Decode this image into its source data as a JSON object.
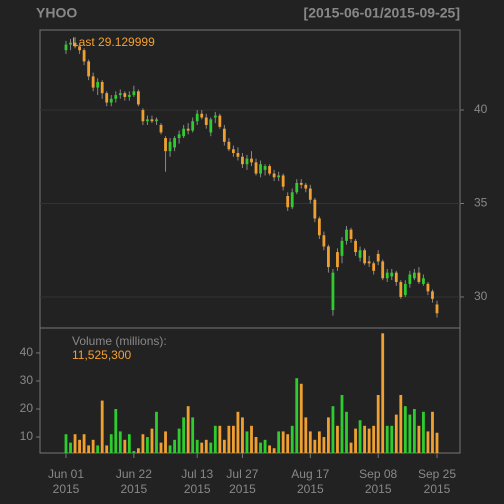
{
  "chart_data": [
    {
      "type": "candlestick",
      "title": "YHOO",
      "subtitle": "[2015-06-01/2015-09-25]",
      "annotation": "Last 29.129999",
      "up_color": "#2ecc2e",
      "down_color": "#f0a030",
      "x": [
        "2015-06-01",
        "2015-06-02",
        "2015-06-03",
        "2015-06-04",
        "2015-06-05",
        "2015-06-08",
        "2015-06-09",
        "2015-06-10",
        "2015-06-11",
        "2015-06-12",
        "2015-06-15",
        "2015-06-16",
        "2015-06-17",
        "2015-06-18",
        "2015-06-19",
        "2015-06-22",
        "2015-06-23",
        "2015-06-24",
        "2015-06-25",
        "2015-06-26",
        "2015-06-29",
        "2015-06-30",
        "2015-07-01",
        "2015-07-02",
        "2015-07-06",
        "2015-07-07",
        "2015-07-08",
        "2015-07-09",
        "2015-07-10",
        "2015-07-13",
        "2015-07-14",
        "2015-07-15",
        "2015-07-16",
        "2015-07-17",
        "2015-07-20",
        "2015-07-21",
        "2015-07-22",
        "2015-07-23",
        "2015-07-24",
        "2015-07-27",
        "2015-07-28",
        "2015-07-29",
        "2015-07-30",
        "2015-07-31",
        "2015-08-03",
        "2015-08-04",
        "2015-08-05",
        "2015-08-06",
        "2015-08-07",
        "2015-08-10",
        "2015-08-11",
        "2015-08-12",
        "2015-08-13",
        "2015-08-14",
        "2015-08-17",
        "2015-08-18",
        "2015-08-19",
        "2015-08-20",
        "2015-08-21",
        "2015-08-24",
        "2015-08-25",
        "2015-08-26",
        "2015-08-27",
        "2015-08-28",
        "2015-08-31",
        "2015-09-01",
        "2015-09-02",
        "2015-09-03",
        "2015-09-04",
        "2015-09-08",
        "2015-09-09",
        "2015-09-10",
        "2015-09-11",
        "2015-09-14",
        "2015-09-15",
        "2015-09-16",
        "2015-09-17",
        "2015-09-18",
        "2015-09-21",
        "2015-09-22",
        "2015-09-23",
        "2015-09-24",
        "2015-09-25"
      ],
      "open": [
        43.2,
        43.5,
        43.6,
        43.4,
        43.2,
        42.6,
        41.8,
        41.2,
        41.5,
        40.9,
        40.4,
        40.6,
        40.8,
        40.9,
        40.7,
        40.8,
        41.0,
        40.0,
        39.4,
        39.5,
        39.4,
        39.2,
        38.5,
        37.8,
        38.0,
        38.5,
        38.6,
        39.0,
        38.9,
        39.4,
        39.8,
        39.6,
        38.8,
        39.6,
        39.7,
        39.0,
        38.3,
        37.9,
        37.7,
        37.5,
        37.1,
        37.4,
        37.2,
        36.6,
        36.8,
        37.0,
        36.6,
        36.4,
        36.5,
        35.4,
        34.8,
        35.6,
        36.1,
        36.0,
        35.8,
        35.2,
        34.2,
        33.3,
        32.7,
        29.3,
        32.4,
        32.2,
        33.0,
        33.6,
        33.0,
        32.1,
        32.5,
        31.9,
        31.8,
        32.3,
        31.9,
        31.0,
        31.1,
        31.3,
        30.8,
        30.1,
        30.7,
        31.0,
        31.3,
        30.7,
        30.7,
        30.3,
        29.6
      ],
      "high": [
        43.7,
        43.8,
        43.9,
        43.5,
        43.3,
        42.7,
        42.0,
        41.7,
        41.6,
        41.0,
        40.8,
        41.0,
        41.1,
        41.0,
        41.0,
        41.3,
        41.1,
        40.1,
        39.7,
        39.7,
        39.6,
        39.3,
        38.6,
        38.5,
        38.6,
        38.9,
        39.2,
        39.3,
        39.6,
        40.0,
        40.0,
        39.8,
        39.6,
        39.9,
        39.8,
        39.2,
        38.5,
        38.1,
        38.0,
        37.7,
        37.6,
        37.8,
        37.4,
        37.3,
        37.1,
        37.1,
        36.8,
        36.7,
        36.6,
        35.6,
        35.8,
        36.3,
        36.3,
        36.1,
        36.0,
        35.3,
        34.3,
        33.5,
        32.8,
        31.5,
        32.6,
        33.2,
        33.8,
        33.7,
        33.1,
        32.7,
        32.6,
        32.2,
        31.9,
        32.5,
        32.0,
        31.5,
        31.5,
        31.4,
        30.9,
        30.9,
        31.4,
        31.5,
        31.6,
        31.2,
        30.8,
        30.4,
        29.8
      ],
      "low": [
        43.0,
        43.2,
        43.3,
        43.0,
        42.4,
        41.6,
        41.0,
        40.8,
        40.6,
        40.2,
        40.2,
        40.4,
        40.6,
        40.5,
        40.5,
        40.7,
        40.2,
        39.2,
        39.2,
        39.3,
        39.2,
        38.7,
        36.7,
        37.5,
        37.8,
        38.2,
        38.5,
        38.7,
        38.8,
        39.2,
        39.5,
        39.0,
        38.6,
        39.3,
        39.0,
        38.1,
        37.8,
        37.5,
        37.3,
        36.9,
        36.8,
        37.0,
        36.5,
        36.4,
        36.5,
        36.5,
        36.2,
        36.2,
        35.7,
        34.6,
        34.7,
        35.5,
        35.8,
        35.6,
        35.0,
        34.0,
        33.1,
        32.5,
        31.3,
        29.0,
        31.4,
        31.8,
        32.8,
        32.9,
        32.2,
        31.9,
        31.7,
        31.6,
        31.2,
        31.7,
        30.9,
        30.8,
        30.9,
        30.6,
        29.9,
        30.0,
        30.5,
        30.9,
        30.7,
        30.6,
        30.1,
        29.7,
        28.9
      ],
      "close": [
        43.5,
        43.6,
        43.4,
        43.2,
        42.6,
        41.8,
        41.2,
        41.5,
        40.9,
        40.4,
        40.6,
        40.8,
        40.9,
        40.7,
        40.8,
        41.0,
        40.3,
        39.4,
        39.5,
        39.4,
        39.5,
        38.8,
        37.8,
        38.3,
        38.5,
        38.7,
        39.0,
        38.9,
        39.4,
        39.8,
        39.6,
        39.2,
        39.5,
        39.7,
        39.1,
        38.3,
        37.9,
        37.7,
        37.5,
        37.1,
        37.4,
        37.2,
        36.6,
        37.1,
        37.0,
        36.6,
        36.4,
        36.5,
        35.9,
        34.8,
        35.6,
        36.1,
        36.0,
        35.8,
        35.2,
        34.2,
        33.3,
        32.7,
        31.6,
        31.3,
        31.6,
        33.0,
        33.6,
        33.1,
        32.4,
        32.5,
        31.8,
        31.8,
        31.4,
        31.9,
        31.0,
        31.3,
        31.3,
        30.8,
        30.0,
        30.7,
        31.2,
        31.3,
        30.8,
        31.0,
        30.3,
        29.9,
        29.129999
      ],
      "ylim": [
        28.34,
        44.28
      ],
      "yticks": [
        30,
        35,
        40
      ],
      "grid": true,
      "xticks": [
        {
          "value": "2015-06-01",
          "label": "Jun 01",
          "year": "2015"
        },
        {
          "value": "2015-06-22",
          "label": "Jun 22",
          "year": "2015"
        },
        {
          "value": "2015-07-13",
          "label": "Jul 13",
          "year": "2015"
        },
        {
          "value": "2015-07-27",
          "label": "Jul 27",
          "year": "2015"
        },
        {
          "value": "2015-08-17",
          "label": "Aug 17",
          "year": "2015"
        },
        {
          "value": "2015-09-08",
          "label": "Sep 08",
          "year": "2015"
        },
        {
          "value": "2015-09-25",
          "label": "Sep 25",
          "year": "2015"
        }
      ]
    },
    {
      "type": "bar",
      "title": "Volume (millions):",
      "annotation": "11,525,300",
      "values": [
        11,
        8,
        11,
        9,
        11,
        7,
        9,
        7,
        23,
        7,
        11,
        20,
        12,
        9,
        11,
        5,
        6,
        11,
        10,
        13,
        19,
        8,
        12,
        7,
        9,
        13,
        17,
        21,
        17,
        9,
        8,
        9,
        8,
        14,
        14,
        9,
        14,
        14,
        19,
        17,
        12,
        14,
        10,
        8,
        9,
        7,
        6,
        12,
        12,
        11,
        14,
        31,
        29,
        17,
        12,
        9,
        12,
        10,
        17,
        21,
        14,
        25,
        19,
        8,
        13,
        16,
        14,
        13,
        14,
        25,
        47,
        14,
        14,
        18,
        25,
        21,
        18,
        20,
        14,
        19,
        12,
        19,
        11.5253
      ],
      "ylim": [
        4.3,
        48.9
      ],
      "yticks": [
        10,
        20,
        30,
        40
      ]
    }
  ]
}
